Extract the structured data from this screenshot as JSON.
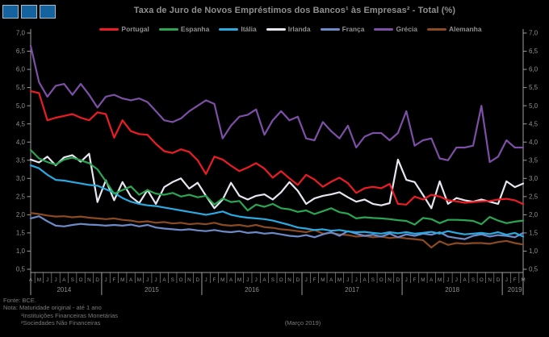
{
  "page": {
    "background": "#000000",
    "text_color": "#8f8f8f"
  },
  "logo": {
    "square_fill": "#14639e",
    "square_border": "#a9bac9",
    "square_count": 3
  },
  "title": "Taxa de Juro de Novos Empréstimos dos Bancos¹ às Empresas² - Total (%)",
  "chart_data": {
    "type": "line",
    "title": "Taxa de Juro de Novos Empréstimos dos Bancos¹ às Empresas² - Total (%)",
    "x_start": "2014-04",
    "x_end": "2019-03",
    "ylim": [
      0.5,
      7.0
    ],
    "ytick_step": 0.5,
    "decimal_separator": ",",
    "grid": false,
    "legend_position": "top",
    "month_letters": [
      "A",
      "M",
      "J",
      "J",
      "A",
      "S",
      "O",
      "N",
      "D",
      "J",
      "F",
      "M",
      "A",
      "M",
      "J",
      "J",
      "A",
      "S",
      "O",
      "N",
      "D",
      "J",
      "F",
      "M",
      "A",
      "M",
      "J",
      "J",
      "A",
      "S",
      "O",
      "N",
      "D",
      "J",
      "F",
      "M",
      "A",
      "M",
      "J",
      "J",
      "A",
      "S",
      "O",
      "N",
      "D",
      "J",
      "F",
      "M",
      "A",
      "M",
      "J",
      "J",
      "A",
      "S",
      "O",
      "N",
      "D",
      "J",
      "F",
      "M"
    ],
    "years": [
      {
        "label": "2014",
        "months": 9
      },
      {
        "label": "2015",
        "months": 12
      },
      {
        "label": "2016",
        "months": 12
      },
      {
        "label": "2017",
        "months": 12
      },
      {
        "label": "2018",
        "months": 12
      },
      {
        "label": "2019",
        "months": 3
      }
    ],
    "series": [
      {
        "name": "Portugal",
        "color": "#ed1c24",
        "values": [
          5.4,
          5.35,
          4.6,
          4.67,
          4.72,
          4.77,
          4.67,
          4.6,
          4.82,
          4.77,
          4.12,
          4.6,
          4.3,
          4.22,
          4.2,
          3.95,
          3.75,
          3.7,
          3.8,
          3.73,
          3.5,
          3.12,
          3.6,
          3.52,
          3.35,
          3.2,
          3.3,
          3.42,
          3.27,
          3.02,
          3.2,
          3.0,
          2.82,
          3.1,
          2.97,
          2.77,
          2.91,
          3.02,
          2.87,
          2.6,
          2.73,
          2.77,
          2.73,
          2.85,
          2.3,
          2.28,
          2.5,
          2.42,
          2.55,
          2.5,
          2.4,
          2.37,
          2.33,
          2.35,
          2.37,
          2.38,
          2.42,
          2.44,
          2.4,
          2.29
        ]
      },
      {
        "name": "Espanha",
        "color": "#2aa653",
        "values": [
          3.78,
          3.55,
          3.45,
          3.38,
          3.52,
          3.57,
          3.5,
          3.42,
          3.25,
          2.92,
          2.58,
          2.68,
          2.78,
          2.55,
          2.68,
          2.58,
          2.55,
          2.6,
          2.5,
          2.55,
          2.48,
          2.52,
          2.28,
          2.45,
          2.35,
          2.38,
          2.12,
          2.28,
          2.22,
          2.3,
          2.18,
          2.15,
          2.08,
          2.12,
          2.02,
          2.1,
          2.18,
          2.07,
          2.03,
          1.9,
          1.93,
          1.91,
          1.9,
          1.88,
          1.85,
          1.83,
          1.73,
          1.91,
          1.88,
          1.77,
          1.86,
          1.86,
          1.85,
          1.83,
          1.74,
          1.94,
          1.84,
          1.77,
          1.81,
          1.84
        ]
      },
      {
        "name": "Itália",
        "color": "#29aae1",
        "values": [
          3.36,
          3.28,
          3.1,
          2.96,
          2.94,
          2.9,
          2.86,
          2.82,
          2.8,
          2.7,
          2.6,
          2.46,
          2.36,
          2.3,
          2.26,
          2.24,
          2.2,
          2.16,
          2.12,
          2.08,
          2.04,
          2.0,
          2.04,
          2.09,
          2.0,
          1.95,
          1.92,
          1.9,
          1.88,
          1.84,
          1.78,
          1.72,
          1.65,
          1.62,
          1.58,
          1.6,
          1.56,
          1.58,
          1.54,
          1.52,
          1.53,
          1.5,
          1.48,
          1.52,
          1.49,
          1.52,
          1.48,
          1.5,
          1.53,
          1.48,
          1.55,
          1.5,
          1.46,
          1.48,
          1.5,
          1.47,
          1.52,
          1.45,
          1.5,
          1.4
        ]
      },
      {
        "name": "Irlanda",
        "color": "#e6e6f0",
        "values": [
          3.52,
          3.44,
          3.6,
          3.36,
          3.58,
          3.64,
          3.46,
          3.68,
          2.35,
          2.95,
          2.4,
          2.9,
          2.5,
          2.32,
          2.68,
          2.3,
          2.76,
          2.9,
          3.0,
          2.72,
          2.88,
          2.52,
          2.18,
          2.42,
          2.88,
          2.52,
          2.42,
          2.52,
          2.56,
          2.42,
          2.62,
          2.9,
          2.66,
          2.3,
          2.45,
          2.52,
          2.56,
          2.62,
          2.48,
          2.36,
          2.42,
          2.3,
          2.26,
          2.32,
          3.52,
          2.96,
          2.9,
          2.55,
          2.18,
          2.92,
          2.3,
          2.46,
          2.4,
          2.36,
          2.42,
          2.36,
          2.3,
          2.92,
          2.76,
          2.86
        ]
      },
      {
        "name": "França",
        "color": "#6d8bc9",
        "values": [
          1.9,
          1.96,
          1.82,
          1.7,
          1.68,
          1.72,
          1.75,
          1.73,
          1.72,
          1.7,
          1.72,
          1.7,
          1.73,
          1.68,
          1.72,
          1.65,
          1.62,
          1.6,
          1.58,
          1.6,
          1.57,
          1.55,
          1.58,
          1.54,
          1.52,
          1.55,
          1.5,
          1.52,
          1.48,
          1.5,
          1.46,
          1.42,
          1.4,
          1.44,
          1.38,
          1.46,
          1.52,
          1.42,
          1.55,
          1.48,
          1.42,
          1.45,
          1.4,
          1.48,
          1.38,
          1.46,
          1.42,
          1.48,
          1.45,
          1.52,
          1.4,
          1.36,
          1.33,
          1.42,
          1.46,
          1.4,
          1.44,
          1.42,
          1.38,
          1.5
        ]
      },
      {
        "name": "Grécia",
        "color": "#7d4fa6",
        "values": [
          6.65,
          5.65,
          5.25,
          5.55,
          5.6,
          5.3,
          5.6,
          5.3,
          4.95,
          5.25,
          5.3,
          5.2,
          5.15,
          5.2,
          5.1,
          4.85,
          4.6,
          4.55,
          4.65,
          4.85,
          5.0,
          5.15,
          5.05,
          4.1,
          4.45,
          4.7,
          4.75,
          4.9,
          4.2,
          4.6,
          4.85,
          4.6,
          4.7,
          4.1,
          4.05,
          4.55,
          4.3,
          4.1,
          4.45,
          3.85,
          4.15,
          4.25,
          4.25,
          4.05,
          4.25,
          4.85,
          3.9,
          4.05,
          4.1,
          3.55,
          3.5,
          3.85,
          3.85,
          3.9,
          5.0,
          3.45,
          3.6,
          4.05,
          3.85,
          3.85
        ]
      },
      {
        "name": "Alemanha",
        "color": "#8b4a22",
        "values": [
          2.05,
          2.02,
          1.98,
          1.95,
          1.96,
          1.93,
          1.95,
          1.92,
          1.9,
          1.88,
          1.9,
          1.86,
          1.84,
          1.8,
          1.82,
          1.78,
          1.8,
          1.76,
          1.78,
          1.74,
          1.76,
          1.74,
          1.78,
          1.72,
          1.7,
          1.72,
          1.68,
          1.72,
          1.66,
          1.64,
          1.6,
          1.58,
          1.55,
          1.52,
          1.58,
          1.48,
          1.5,
          1.46,
          1.44,
          1.4,
          1.42,
          1.38,
          1.4,
          1.36,
          1.38,
          1.35,
          1.33,
          1.3,
          1.1,
          1.27,
          1.17,
          1.22,
          1.2,
          1.22,
          1.22,
          1.2,
          1.25,
          1.28,
          1.22,
          1.18
        ]
      }
    ]
  },
  "footer": {
    "source": "Fonte: BCE.",
    "note": "Nota: Maturidade original - até 1 ano",
    "footnote1": "¹Instituições Financeiras Monetárias",
    "footnote2": "²Sociedades Não Financeiras",
    "date_note": "(Março 2019)"
  }
}
